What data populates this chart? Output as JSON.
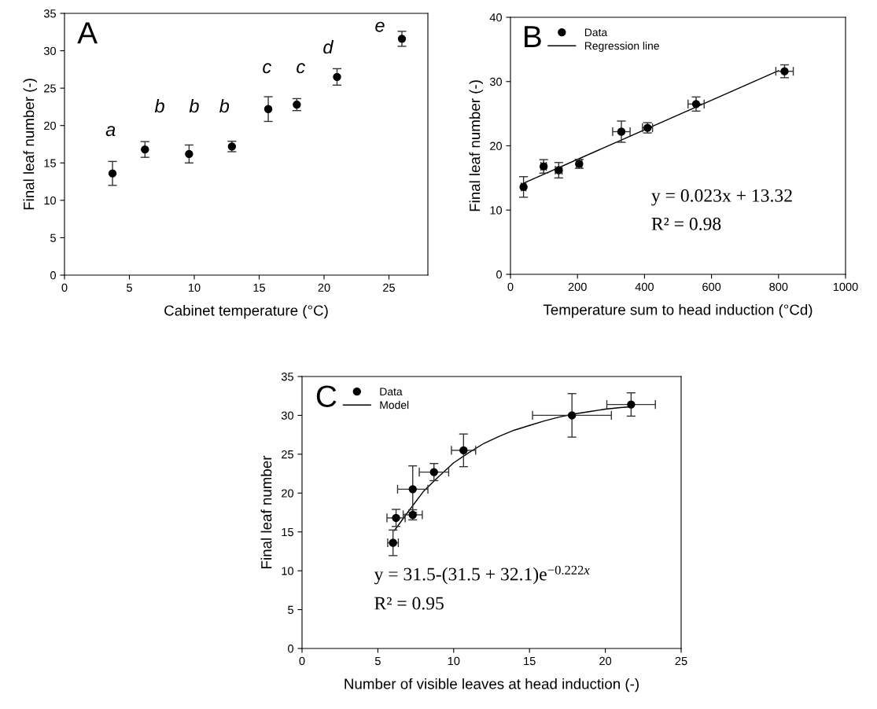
{
  "chart_data": [
    {
      "type": "scatter",
      "xlabel": "Cabinet temperature (°C)",
      "ylabel": "Final leaf number (-)",
      "xlim": [
        0,
        28
      ],
      "xticks": [
        0,
        5,
        10,
        15,
        20,
        25
      ],
      "ylim": [
        0,
        35
      ],
      "yticks": [
        0,
        5,
        10,
        15,
        20,
        25,
        30,
        35
      ],
      "marker": "circle",
      "grid": false,
      "legend": false,
      "series": [
        {
          "color": "#000000",
          "x": [
            3.7,
            6.2,
            9.6,
            12.9,
            15.7,
            17.9,
            21.0,
            26.0
          ],
          "values": [
            13.6,
            16.8,
            16.2,
            17.2,
            22.2,
            22.8,
            26.5,
            31.6
          ],
          "errors": [
            1.6,
            1.05,
            1.2,
            0.7,
            1.65,
            0.8,
            1.1,
            1.0
          ]
        }
      ],
      "annotations": [
        "A",
        "a",
        "b",
        "b",
        "b",
        "c",
        "c",
        "d",
        "e"
      ]
    },
    {
      "type": "scatter",
      "xlabel": "Temperature sum to head induction (°Cd)",
      "ylabel": "Final leaf number (-)",
      "xlim": [
        0,
        1000
      ],
      "xticks": [
        0,
        200,
        400,
        600,
        800,
        1000
      ],
      "ylim": [
        0,
        40
      ],
      "yticks": [
        0,
        10,
        20,
        30,
        40
      ],
      "marker": "circle",
      "grid": false,
      "legend": "top left",
      "series": [
        {
          "name": "Data",
          "color": "#000000",
          "x": [
            39,
            99,
            144,
            205,
            331,
            409,
            554,
            818
          ],
          "values": [
            13.6,
            16.8,
            16.2,
            17.2,
            22.2,
            22.8,
            26.5,
            31.6
          ],
          "errors": [
            1.6,
            1.05,
            1.2,
            0.7,
            1.65,
            0.8,
            1.1,
            1.0
          ],
          "xerrors": [
            7,
            8,
            10,
            8,
            26,
            15,
            24,
            26
          ]
        },
        {
          "name": "Regression line",
          "type": "line",
          "color": "#000000",
          "marker": "none",
          "x": [
            40,
            800
          ],
          "values": [
            14.2,
            31.7
          ]
        }
      ],
      "annotations": [
        "B",
        "y = 0.023x + 13.32",
        "R² = 0.98"
      ]
    },
    {
      "type": "scatter",
      "xlabel": "Number of visible leaves at head induction (-)",
      "ylabel": "Final leaf number",
      "xlim": [
        0,
        25
      ],
      "xticks": [
        0,
        5,
        10,
        15,
        20,
        25
      ],
      "ylim": [
        0,
        35
      ],
      "yticks": [
        0,
        5,
        10,
        15,
        20,
        25,
        30,
        35
      ],
      "marker": "circle",
      "grid": false,
      "legend": "top left",
      "series": [
        {
          "name": "Data",
          "color": "#000000",
          "x": [
            6.0,
            6.2,
            7.3,
            7.3,
            8.7,
            10.65,
            17.8,
            21.7
          ],
          "values": [
            13.6,
            16.8,
            17.2,
            20.5,
            22.7,
            25.5,
            30.0,
            31.4
          ],
          "errors": [
            1.65,
            1.1,
            0.65,
            3.0,
            1.1,
            2.1,
            2.8,
            1.5
          ],
          "xerrors": [
            0.35,
            0.6,
            0.63,
            1.0,
            0.97,
            0.8,
            2.6,
            1.6
          ]
        },
        {
          "name": "Model",
          "type": "line",
          "color": "#000000",
          "marker": "none",
          "x": [
            6.1,
            7,
            8,
            9,
            10,
            11,
            12,
            13,
            14,
            15,
            16,
            17,
            18,
            19,
            20,
            21,
            21.7
          ],
          "values": [
            15.2,
            17.6,
            20.2,
            22.1,
            23.9,
            25.2,
            26.4,
            27.3,
            28.1,
            28.7,
            29.3,
            29.8,
            30.2,
            30.5,
            30.8,
            31.0,
            31.1
          ]
        }
      ],
      "annotations": [
        "C",
        "y = 31.5-(31.5 + 32.1)e$^{−0.222x}$",
        "R² = 0.95"
      ]
    }
  ]
}
